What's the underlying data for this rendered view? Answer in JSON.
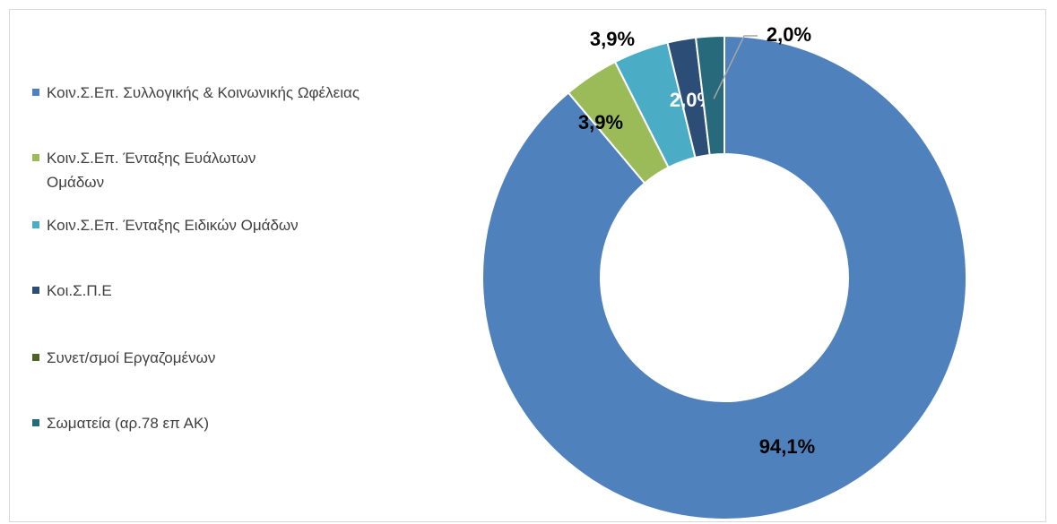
{
  "chart_data": {
    "type": "donut",
    "categories": [
      "Κοιν.Σ.Επ. Συλλογικής & Κοινωνικής Ωφέλειας",
      "Κοιν.Σ.Επ. Ένταξης Ευάλωτων Ομάδων",
      "Κοιν.Σ.Επ. Ένταξης Ειδικών Ομάδων",
      "Κοι.Σ.Π.Ε",
      "Συνετ/σμοί Εργαζομένων",
      "Σωματεία (αρ.78 επ ΑΚ)"
    ],
    "values": [
      94.1,
      3.9,
      3.9,
      2.0,
      0,
      2.0
    ],
    "value_labels": [
      "94,1%",
      "3,9%",
      "3,9%",
      "2,0%",
      null,
      "2,0%"
    ],
    "colors": [
      "#4f81bd",
      "#9bbb59",
      "#4bacc6",
      "#2c4d75",
      "#4f6228",
      "#276a7c"
    ],
    "legend": "left"
  }
}
